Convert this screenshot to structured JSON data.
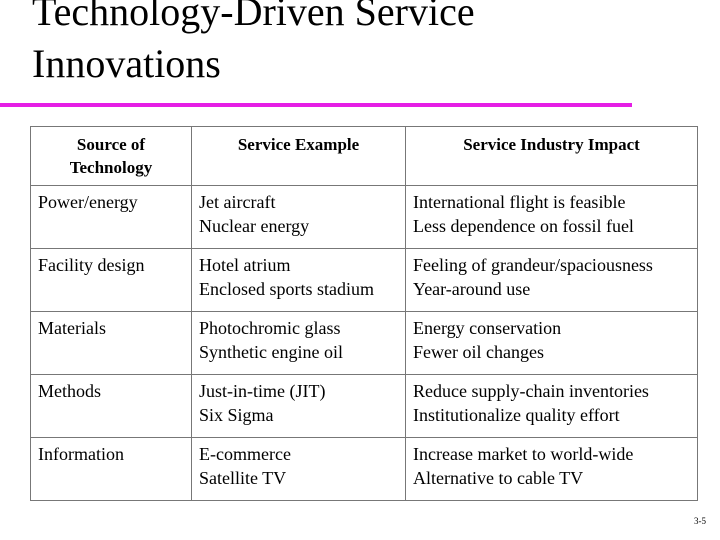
{
  "title": [
    "Technology-Driven Service",
    "Innovations"
  ],
  "table": {
    "header": [
      [
        "Source of",
        "Technology"
      ],
      [
        "Service Example"
      ],
      [
        "Service Industry Impact"
      ]
    ],
    "rows": [
      [
        [
          "Power/energy"
        ],
        [
          "Jet aircraft",
          "Nuclear energy"
        ],
        [
          "International flight is feasible",
          "Less dependence on fossil fuel"
        ]
      ],
      [
        [
          "Facility design"
        ],
        [
          "Hotel atrium",
          "Enclosed sports stadium"
        ],
        [
          "Feeling of grandeur/spaciousness",
          "Year-around use"
        ]
      ],
      [
        [
          "Materials"
        ],
        [
          "Photochromic glass",
          "Synthetic engine oil"
        ],
        [
          "Energy conservation",
          "Fewer oil changes"
        ]
      ],
      [
        [
          "Methods"
        ],
        [
          "Just-in-time (JIT)",
          "Six Sigma"
        ],
        [
          "Reduce supply-chain inventories",
          "Institutionalize quality effort"
        ]
      ],
      [
        [
          "Information"
        ],
        [
          "E-commerce",
          "Satellite TV"
        ],
        [
          "Increase market to world-wide",
          "Alternative to cable TV"
        ]
      ]
    ]
  },
  "page_number": "3-5"
}
